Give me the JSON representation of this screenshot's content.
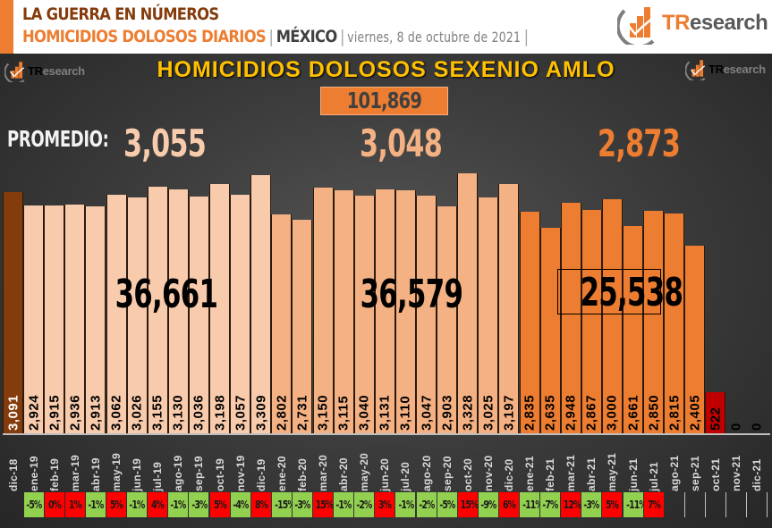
{
  "header": {
    "line1": "LA GUERRA EN NÚMEROS",
    "subtitle": "HOMICIDIOS DOLOSOS DIARIOS",
    "separator": "|",
    "country": "MÉXICO",
    "date": "viernes, 8 de octubre de 2021",
    "logo_t1": "TR",
    "logo_t2": "esearch"
  },
  "chart_title": "HOMICIDIOS DOLOSOS SEXENIO AMLO",
  "total": "101,869",
  "promedio_label": "PROMEDIO:",
  "averages": [
    "3,055",
    "3,048",
    "2,873"
  ],
  "year_totals": [
    "36,661",
    "36,579",
    "25,538"
  ],
  "colors": {
    "dic18": "#843c0c",
    "y2019": "#f8cbad",
    "y2020": "#f4b183",
    "y2021": "#ed7d31",
    "oct21": "#c00000",
    "pct_up": "#ff0000",
    "pct_down": "#92d050",
    "title": "#ffc000"
  },
  "chart_data": {
    "type": "bar",
    "title": "HOMICIDIOS DOLOSOS SEXENIO AMLO",
    "xlabel": "",
    "ylabel": "",
    "grid": false,
    "categories": [
      "dic-18",
      "ene-19",
      "feb-19",
      "mar-19",
      "abr-19",
      "may-19",
      "jun-19",
      "jul-19",
      "ago-19",
      "sep-19",
      "oct-19",
      "nov-19",
      "dic-19",
      "ene-20",
      "feb-20",
      "mar-20",
      "abr-20",
      "may-20",
      "jun-20",
      "jul-20",
      "ago-20",
      "sep-20",
      "oct-20",
      "nov-20",
      "dic-20",
      "ene-21",
      "feb-21",
      "mar-21",
      "abr-21",
      "may-21",
      "jun-21",
      "jul-21",
      "ago-21",
      "sep-21",
      "oct-21",
      "nov-21",
      "dic-21"
    ],
    "values": [
      3091,
      2924,
      2915,
      2936,
      2913,
      3062,
      3026,
      3155,
      3130,
      3036,
      3198,
      3057,
      3309,
      2802,
      2731,
      3150,
      3115,
      3040,
      3131,
      3110,
      3047,
      2903,
      3328,
      3025,
      3197,
      2835,
      2635,
      2948,
      2867,
      3000,
      2661,
      2850,
      2815,
      2405,
      522,
      0,
      0
    ],
    "value_labels": [
      "3,091",
      "2,924",
      "2,915",
      "2,936",
      "2,913",
      "3,062",
      "3,026",
      "3,155",
      "3,130",
      "3,036",
      "3,198",
      "3,057",
      "3,309",
      "2,802",
      "2,731",
      "3,150",
      "3,115",
      "3,040",
      "3,131",
      "3,110",
      "3,047",
      "2,903",
      "3,328",
      "3,025",
      "3,197",
      "2,835",
      "2,635",
      "2,948",
      "2,867",
      "3,000",
      "2,661",
      "2,850",
      "2,815",
      "2,405",
      "522",
      "0",
      "0"
    ],
    "pct_change": [
      "",
      "-5%",
      "0%",
      "1%",
      "-1%",
      "5%",
      "-1%",
      "4%",
      "-1%",
      "-3%",
      "5%",
      "-4%",
      "8%",
      "-15%",
      "-3%",
      "15%",
      "-1%",
      "-2%",
      "3%",
      "-1%",
      "-2%",
      "-5%",
      "15%",
      "-9%",
      "6%",
      "-11%",
      "-7%",
      "12%",
      "-3%",
      "5%",
      "-11%",
      "7%",
      "",
      "",
      "",
      "",
      ""
    ],
    "annual_totals": {
      "2019": 36661,
      "2020": 36579,
      "2021": 25538
    },
    "annual_averages": {
      "2019": 3055,
      "2020": 3048,
      "2021": 2873
    },
    "grand_total": 101869,
    "ylim": [
      0,
      3400
    ]
  }
}
